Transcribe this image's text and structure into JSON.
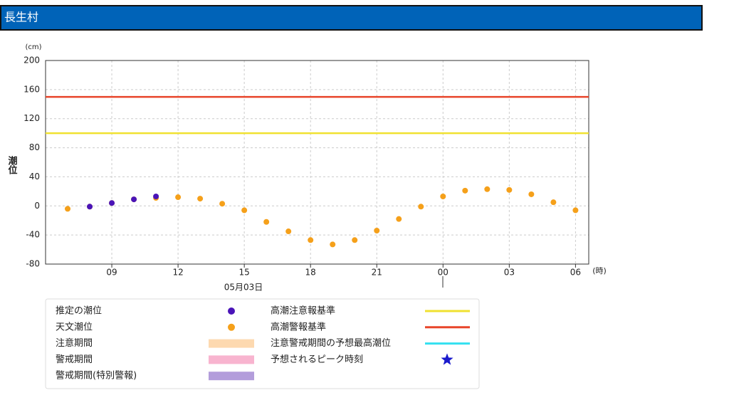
{
  "header": {
    "title": "長生村"
  },
  "chart_data": {
    "type": "scatter",
    "y_unit": "(cm)",
    "ylabel": "潮位",
    "x_unit": "(時)",
    "date_label": "05月03日",
    "x": [
      7,
      8,
      9,
      10,
      11,
      12,
      13,
      14,
      15,
      16,
      17,
      18,
      19,
      20,
      21,
      22,
      23,
      24,
      25,
      26,
      27,
      28,
      29,
      30
    ],
    "xlim": [
      6,
      30.6
    ],
    "xticks": [
      {
        "value": 9,
        "label": "09"
      },
      12,
      15,
      18,
      21,
      {
        "value": 24,
        "label": "00"
      },
      {
        "value": 27,
        "label": "03"
      },
      {
        "value": 30,
        "label": "06"
      }
    ],
    "ylim": [
      -80,
      200
    ],
    "yticks": [
      -80,
      -40,
      0,
      40,
      80,
      120,
      160,
      200
    ],
    "grid": true,
    "series": [
      {
        "name": "天文潮位",
        "color": "#f5a01a",
        "values": [
          -4,
          -1,
          4,
          9,
          11,
          12,
          10,
          3,
          -6,
          -22,
          -35,
          -47,
          -53,
          -47,
          -34,
          -18,
          -1,
          13,
          21,
          23,
          22,
          16,
          5,
          -6
        ]
      },
      {
        "name": "推定の潮位",
        "color": "#4a14b8",
        "values": [
          null,
          -1,
          4,
          9,
          13,
          null,
          null,
          null,
          null,
          null,
          null,
          null,
          null,
          null,
          null,
          null,
          null,
          null,
          null,
          null,
          null,
          null,
          null,
          null
        ]
      }
    ],
    "reference_lines": [
      {
        "name": "高潮注意報基準",
        "value": 100,
        "color": "#f0e130"
      },
      {
        "name": "高潮警報基準",
        "value": 150,
        "color": "#e8452a"
      }
    ],
    "legend": [
      {
        "name": "推定の潮位",
        "kind": "dot",
        "color": "#4a14b8"
      },
      {
        "name": "天文潮位",
        "kind": "dot",
        "color": "#f5a01a"
      },
      {
        "name": "注意期間",
        "kind": "band",
        "color": "#fdd9b0"
      },
      {
        "name": "警戒期間",
        "kind": "band",
        "color": "#f8b4cf"
      },
      {
        "name": "警戒期間(特別警報)",
        "kind": "band",
        "color": "#b39ddb"
      },
      {
        "name": "高潮注意報基準",
        "kind": "line",
        "color": "#f0e130"
      },
      {
        "name": "高潮警報基準",
        "kind": "line",
        "color": "#e8452a"
      },
      {
        "name": "注意警戒期間の予想最高潮位",
        "kind": "line",
        "color": "#33e0f0"
      },
      {
        "name": "予想されるピーク時刻",
        "kind": "star",
        "color": "#1a1acc"
      }
    ]
  }
}
